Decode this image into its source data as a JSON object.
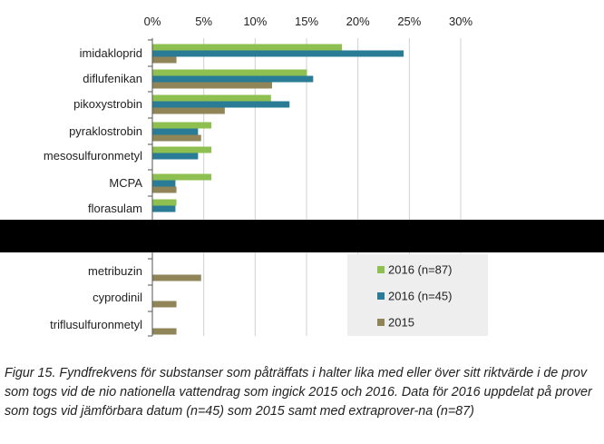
{
  "chart_data": {
    "type": "bar",
    "orientation": "horizontal",
    "x_ticks": [
      "0%",
      "5%",
      "10%",
      "15%",
      "20%",
      "25%",
      "30%"
    ],
    "xlim": [
      0,
      30
    ],
    "grid": true,
    "legend_position": "bottom-right",
    "categories": [
      "imidakloprid",
      "diflufenikan",
      "pikoxystrobin",
      "pyraklostrobin",
      "mesosulfuronmetyl",
      "MCPA",
      "florasulam",
      "metribuzin",
      "cyprodinil",
      "triflusulfuronmetyl"
    ],
    "series": [
      {
        "name": "2016 (n=87)",
        "color": "#8DC050",
        "values": [
          18.4,
          15.0,
          11.5,
          5.7,
          5.7,
          5.7,
          2.3,
          null,
          null,
          null
        ]
      },
      {
        "name": "2016 (n=45)",
        "color": "#2A7B95",
        "values": [
          24.4,
          15.6,
          13.3,
          4.4,
          4.4,
          2.2,
          2.2,
          null,
          null,
          null
        ]
      },
      {
        "name": "2015",
        "color": "#8F8559",
        "values": [
          2.3,
          11.6,
          7.0,
          4.7,
          null,
          2.3,
          null,
          4.7,
          2.3,
          2.3
        ]
      }
    ],
    "caption": "Figur 15. Fyndfrekvens för substanser som påträffats i halter lika med eller över sitt riktvärde i de prov som togs vid de nio nationella vattendrag som ingick 2015 och 2016. Data för 2016 uppdelat på prover som togs vid jämförbara datum (n=45) som 2015 samt med extraprover-na (n=87)"
  }
}
